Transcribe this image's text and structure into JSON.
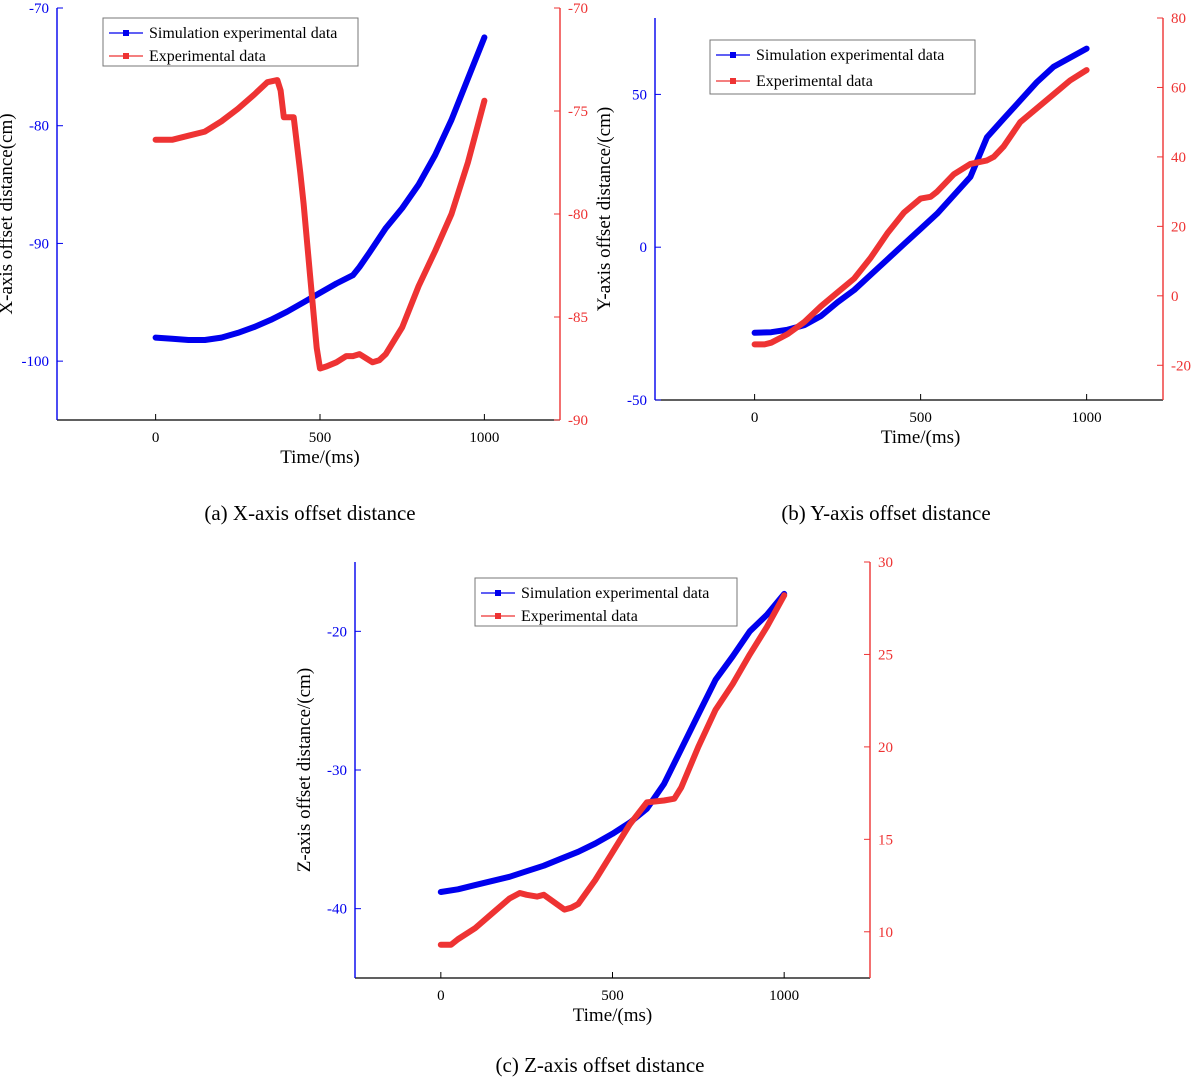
{
  "figure": {
    "captions": [
      "(a) X-axis offset distance",
      "(b) Y-axis offset distance",
      "(c) Z-axis offset distance"
    ]
  },
  "colors": {
    "blue": "#0000ee",
    "red": "#ee3333",
    "axis": "#000000"
  },
  "chart_data": [
    {
      "type": "line",
      "caption": "(a) X-axis offset distance",
      "xlabel": "Time/(ms)",
      "ylabel": "X-axis offset distance(cm)",
      "y2label": "",
      "xlim": [
        -300,
        1230
      ],
      "ylim": [
        -105,
        -70
      ],
      "y2lim": [
        -90,
        -70
      ],
      "xticks": [
        0,
        500,
        1000
      ],
      "yticks": [
        -70,
        -80,
        -90,
        -100
      ],
      "y2ticks": [
        -70,
        -75,
        -80,
        -85,
        -90
      ],
      "legend_position": "top-left",
      "series": [
        {
          "name": "Simulation experimental data",
          "axis": "left",
          "color": "#0000ee",
          "x": [
            0,
            50,
            100,
            150,
            200,
            250,
            300,
            350,
            400,
            450,
            500,
            550,
            600,
            620,
            650,
            700,
            750,
            800,
            850,
            900,
            950,
            1000
          ],
          "y": [
            -98.0,
            -98.1,
            -98.2,
            -98.2,
            -98.0,
            -97.6,
            -97.1,
            -96.5,
            -95.8,
            -95.0,
            -94.2,
            -93.4,
            -92.7,
            -92.0,
            -90.8,
            -88.7,
            -87.0,
            -85.0,
            -82.5,
            -79.5,
            -76.0,
            -72.5
          ]
        },
        {
          "name": "Experimental data",
          "axis": "right",
          "color": "#ee3333",
          "x": [
            0,
            50,
            100,
            150,
            200,
            250,
            300,
            340,
            370,
            380,
            390,
            420,
            440,
            450,
            470,
            490,
            500,
            520,
            550,
            580,
            600,
            620,
            640,
            660,
            680,
            700,
            750,
            800,
            850,
            900,
            950,
            1000
          ],
          "y": [
            -76.4,
            -76.4,
            -76.2,
            -76.0,
            -75.5,
            -74.9,
            -74.2,
            -73.6,
            -73.5,
            -74.0,
            -75.3,
            -75.3,
            -78.0,
            -79.5,
            -83.0,
            -86.5,
            -87.5,
            -87.4,
            -87.2,
            -86.9,
            -86.9,
            -86.8,
            -87.0,
            -87.2,
            -87.1,
            -86.8,
            -85.5,
            -83.5,
            -81.8,
            -80.0,
            -77.5,
            -74.5
          ]
        }
      ]
    },
    {
      "type": "line",
      "caption": "(b) Y-axis offset distance",
      "xlabel": "Time/(ms)",
      "ylabel": "Y-axis offset distance/(cm)",
      "y2label": "",
      "xlim": [
        -300,
        1230
      ],
      "ylim": [
        -50,
        75
      ],
      "y2lim": [
        -30,
        80
      ],
      "xticks": [
        0,
        500,
        1000
      ],
      "yticks": [
        50,
        0,
        -50
      ],
      "y2ticks": [
        80,
        60,
        40,
        20,
        0,
        -20
      ],
      "legend_position": "top-left",
      "series": [
        {
          "name": "Simulation experimental data",
          "axis": "left",
          "color": "#0000ee",
          "x": [
            0,
            50,
            100,
            150,
            200,
            250,
            300,
            350,
            400,
            450,
            500,
            550,
            600,
            650,
            700,
            750,
            800,
            850,
            900,
            950,
            1000
          ],
          "y": [
            -28.0,
            -27.8,
            -27.0,
            -25.5,
            -22.5,
            -18.0,
            -14.0,
            -9.0,
            -4.0,
            1.0,
            6.0,
            11.0,
            17.0,
            23.0,
            36.0,
            42.0,
            48.0,
            54.0,
            59.0,
            62.0,
            65.0
          ]
        },
        {
          "name": "Experimental data",
          "axis": "right",
          "color": "#ee3333",
          "x": [
            0,
            30,
            50,
            80,
            100,
            150,
            200,
            250,
            300,
            350,
            400,
            450,
            500,
            530,
            550,
            600,
            650,
            700,
            720,
            750,
            800,
            850,
            900,
            950,
            1000
          ],
          "y": [
            -14.0,
            -14.0,
            -13.5,
            -12.0,
            -11.0,
            -7.5,
            -3.0,
            1.0,
            5.0,
            11.0,
            18.0,
            24.0,
            28.0,
            28.5,
            30.0,
            35.0,
            38.0,
            39.0,
            40.0,
            43.0,
            50.0,
            54.0,
            58.0,
            62.0,
            65.0
          ]
        }
      ]
    },
    {
      "type": "line",
      "caption": "(c) Z-axis offset distance",
      "xlabel": "Time/(ms)",
      "ylabel": "Z-axis offset distance/(cm)",
      "y2label": "",
      "xlim": [
        -250,
        1250
      ],
      "ylim": [
        -45,
        -15
      ],
      "y2lim": [
        7.5,
        30
      ],
      "xticks": [
        0,
        500,
        1000
      ],
      "yticks": [
        -20,
        -30,
        -40
      ],
      "y2ticks": [
        30,
        25,
        20,
        15,
        10
      ],
      "legend_position": "top-center",
      "series": [
        {
          "name": "Simulation experimental data",
          "axis": "left",
          "color": "#0000ee",
          "x": [
            0,
            50,
            100,
            150,
            200,
            250,
            300,
            350,
            400,
            450,
            500,
            550,
            600,
            650,
            700,
            750,
            800,
            850,
            900,
            950,
            1000
          ],
          "y": [
            -38.8,
            -38.6,
            -38.3,
            -38.0,
            -37.7,
            -37.3,
            -36.9,
            -36.4,
            -35.9,
            -35.3,
            -34.6,
            -33.8,
            -32.8,
            -31.0,
            -28.5,
            -26.0,
            -23.5,
            -21.8,
            -20.0,
            -18.8,
            -17.3
          ]
        },
        {
          "name": "Experimental data",
          "axis": "right",
          "color": "#ee3333",
          "x": [
            0,
            30,
            50,
            100,
            150,
            200,
            230,
            250,
            280,
            300,
            330,
            360,
            380,
            400,
            450,
            500,
            550,
            600,
            650,
            680,
            700,
            750,
            800,
            850,
            900,
            950,
            1000
          ],
          "y": [
            9.3,
            9.3,
            9.6,
            10.2,
            11.0,
            11.8,
            12.1,
            12.0,
            11.9,
            12.0,
            11.6,
            11.2,
            11.3,
            11.5,
            12.8,
            14.3,
            15.8,
            17.0,
            17.1,
            17.2,
            17.8,
            20.0,
            22.0,
            23.4,
            25.0,
            26.5,
            28.2
          ]
        }
      ]
    }
  ]
}
